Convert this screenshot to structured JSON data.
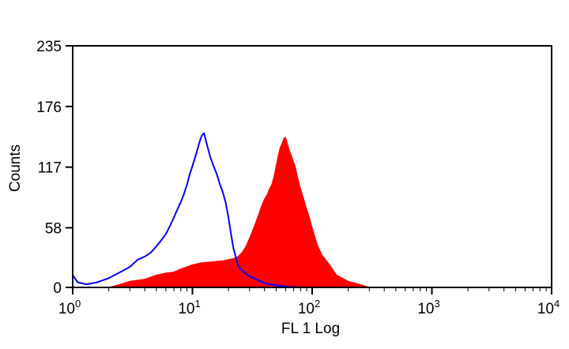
{
  "chart_data": {
    "type": "area",
    "title": "",
    "xlabel": "FL 1 Log",
    "ylabel": "Counts",
    "x_scale": "log",
    "xlim": [
      1,
      10000
    ],
    "ylim": [
      0,
      235
    ],
    "grid": false,
    "x_ticks": [
      {
        "base": "10",
        "exp": "0",
        "value": 1
      },
      {
        "base": "10",
        "exp": "1",
        "value": 10
      },
      {
        "base": "10",
        "exp": "2",
        "value": 100
      },
      {
        "base": "10",
        "exp": "3",
        "value": 1000
      },
      {
        "base": "10",
        "exp": "4",
        "value": 10000
      }
    ],
    "y_ticks": [
      "0",
      "58",
      "117",
      "176",
      "235"
    ],
    "series": [
      {
        "style": "outline",
        "color": "#0000ff",
        "x": [
          1.0,
          1.1,
          1.3,
          1.6,
          2.0,
          2.5,
          3.0,
          3.5,
          4.0,
          4.5,
          5.0,
          5.5,
          6.0,
          6.5,
          7.0,
          7.5,
          8.0,
          8.5,
          9.0,
          9.5,
          10.0,
          10.5,
          11.0,
          11.5,
          12.0,
          12.5,
          13.0,
          14.0,
          15.0,
          16.0,
          17.0,
          18.0,
          19.0,
          20.0,
          21.0,
          22.0,
          23.0,
          24.0,
          25.0,
          27.0,
          29.0,
          31.0,
          34.0,
          37.0,
          40.0,
          45.0,
          50.0,
          60.0,
          80.0
        ],
        "y": [
          12,
          5,
          3,
          5,
          9,
          15,
          20,
          27,
          30,
          34,
          40,
          46,
          52,
          60,
          68,
          76,
          83,
          91,
          100,
          110,
          118,
          126,
          134,
          142,
          148,
          150,
          142,
          128,
          118,
          110,
          100,
          92,
          82,
          68,
          52,
          38,
          30,
          22,
          18,
          15,
          12,
          10,
          8,
          6,
          4,
          3,
          2,
          1,
          0
        ]
      },
      {
        "style": "filled",
        "color": "#ff0000",
        "x": [
          2.0,
          2.5,
          3.0,
          4.0,
          5.0,
          6.0,
          7.0,
          8.0,
          10.0,
          12.0,
          15.0,
          18.0,
          20.0,
          22.0,
          24.0,
          26.0,
          28.0,
          30.0,
          32.0,
          34.0,
          36.0,
          38.0,
          40.0,
          42.0,
          44.0,
          46.0,
          48.0,
          50.0,
          52.0,
          54.0,
          56.0,
          58.0,
          60.0,
          62.0,
          65.0,
          68.0,
          72.0,
          76.0,
          80.0,
          85.0,
          90.0,
          95.0,
          100.0,
          110.0,
          120.0,
          140.0,
          160.0,
          200.0,
          250.0,
          300.0
        ],
        "y": [
          0,
          3,
          6,
          8,
          12,
          14,
          15,
          18,
          22,
          24,
          25,
          26,
          27,
          28,
          30,
          34,
          40,
          48,
          56,
          64,
          72,
          80,
          86,
          90,
          96,
          100,
          108,
          118,
          128,
          136,
          140,
          145,
          146,
          140,
          132,
          126,
          118,
          106,
          96,
          86,
          76,
          68,
          58,
          42,
          32,
          22,
          12,
          6,
          3,
          0
        ]
      }
    ]
  }
}
